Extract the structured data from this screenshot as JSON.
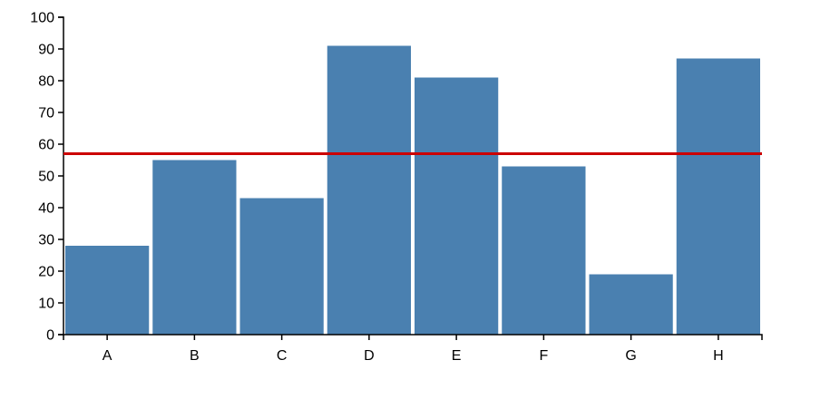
{
  "chart_data": {
    "type": "bar",
    "title": "",
    "xlabel": "",
    "ylabel": "",
    "categories": [
      "A",
      "B",
      "C",
      "D",
      "E",
      "F",
      "G",
      "H"
    ],
    "values": [
      28,
      55,
      43,
      91,
      81,
      53,
      19,
      87
    ],
    "ylim": [
      0,
      100
    ],
    "yticks": [
      0,
      10,
      20,
      30,
      40,
      50,
      60,
      70,
      80,
      90,
      100
    ],
    "reference_line": {
      "value": 57,
      "color": "#cc0000"
    },
    "bar_color": "#4a80b0",
    "grid": false,
    "legend": "none"
  }
}
